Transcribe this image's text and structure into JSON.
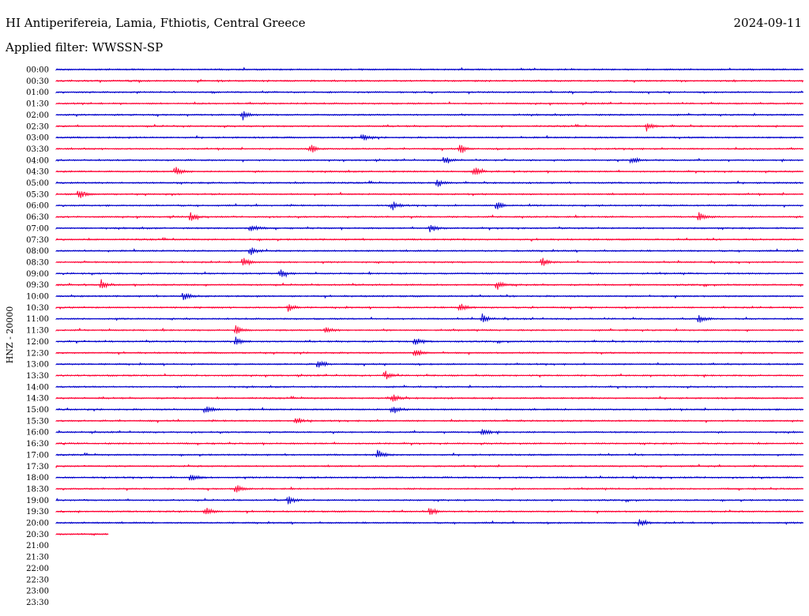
{
  "header": {
    "station": "HI Antiperifereia, Lamia, Fthiotis, Central Greece",
    "date": "2024-09-11",
    "filter": "Applied filter: WWSSN-SP"
  },
  "chart_data": {
    "type": "line",
    "title": "HI Antiperifereia, Lamia, Fthiotis, Central Greece",
    "ylabel": "HNZ - 20000",
    "xlabel": "",
    "row_labels": [
      "00:00",
      "00:30",
      "01:00",
      "01:30",
      "02:00",
      "02:30",
      "03:00",
      "03:30",
      "04:00",
      "04:30",
      "05:00",
      "05:30",
      "06:00",
      "06:30",
      "07:00",
      "07:30",
      "08:00",
      "08:30",
      "09:00",
      "09:30",
      "10:00",
      "10:30",
      "11:00",
      "11:30",
      "12:00",
      "12:30",
      "13:00",
      "13:30",
      "14:00",
      "14:30",
      "15:00",
      "15:30",
      "16:00",
      "16:30",
      "17:00",
      "17:30",
      "18:00",
      "18:30",
      "19:00",
      "19:30",
      "20:00",
      "20:30",
      "21:00",
      "21:30",
      "22:00",
      "22:30",
      "23:00",
      "23:30"
    ],
    "recorded_rows": 42,
    "last_row_fraction": 0.07,
    "colors": {
      "even_rows": "#0000cc",
      "odd_rows": "#ff0033"
    },
    "events": [
      {
        "row": 4,
        "t": 0.25
      },
      {
        "row": 5,
        "t": 0.79
      },
      {
        "row": 6,
        "t": 0.41
      },
      {
        "row": 7,
        "t": 0.34
      },
      {
        "row": 7,
        "t": 0.54
      },
      {
        "row": 8,
        "t": 0.52
      },
      {
        "row": 8,
        "t": 0.77
      },
      {
        "row": 9,
        "t": 0.16
      },
      {
        "row": 9,
        "t": 0.56
      },
      {
        "row": 10,
        "t": 0.51
      },
      {
        "row": 11,
        "t": 0.03
      },
      {
        "row": 12,
        "t": 0.45
      },
      {
        "row": 12,
        "t": 0.59
      },
      {
        "row": 13,
        "t": 0.18
      },
      {
        "row": 13,
        "t": 0.86
      },
      {
        "row": 14,
        "t": 0.26
      },
      {
        "row": 14,
        "t": 0.5
      },
      {
        "row": 16,
        "t": 0.26
      },
      {
        "row": 17,
        "t": 0.25
      },
      {
        "row": 17,
        "t": 0.65
      },
      {
        "row": 18,
        "t": 0.3
      },
      {
        "row": 19,
        "t": 0.06
      },
      {
        "row": 19,
        "t": 0.59
      },
      {
        "row": 20,
        "t": 0.17
      },
      {
        "row": 21,
        "t": 0.31
      },
      {
        "row": 21,
        "t": 0.54
      },
      {
        "row": 22,
        "t": 0.57
      },
      {
        "row": 22,
        "t": 0.86
      },
      {
        "row": 23,
        "t": 0.36
      },
      {
        "row": 23,
        "t": 0.24
      },
      {
        "row": 24,
        "t": 0.24
      },
      {
        "row": 24,
        "t": 0.48
      },
      {
        "row": 25,
        "t": 0.48
      },
      {
        "row": 26,
        "t": 0.35
      },
      {
        "row": 27,
        "t": 0.44
      },
      {
        "row": 29,
        "t": 0.45
      },
      {
        "row": 30,
        "t": 0.2
      },
      {
        "row": 30,
        "t": 0.45
      },
      {
        "row": 31,
        "t": 0.32
      },
      {
        "row": 32,
        "t": 0.57
      },
      {
        "row": 34,
        "t": 0.43
      },
      {
        "row": 36,
        "t": 0.18
      },
      {
        "row": 37,
        "t": 0.24
      },
      {
        "row": 38,
        "t": 0.31
      },
      {
        "row": 39,
        "t": 0.2
      },
      {
        "row": 39,
        "t": 0.5
      },
      {
        "row": 40,
        "t": 0.78
      }
    ]
  }
}
